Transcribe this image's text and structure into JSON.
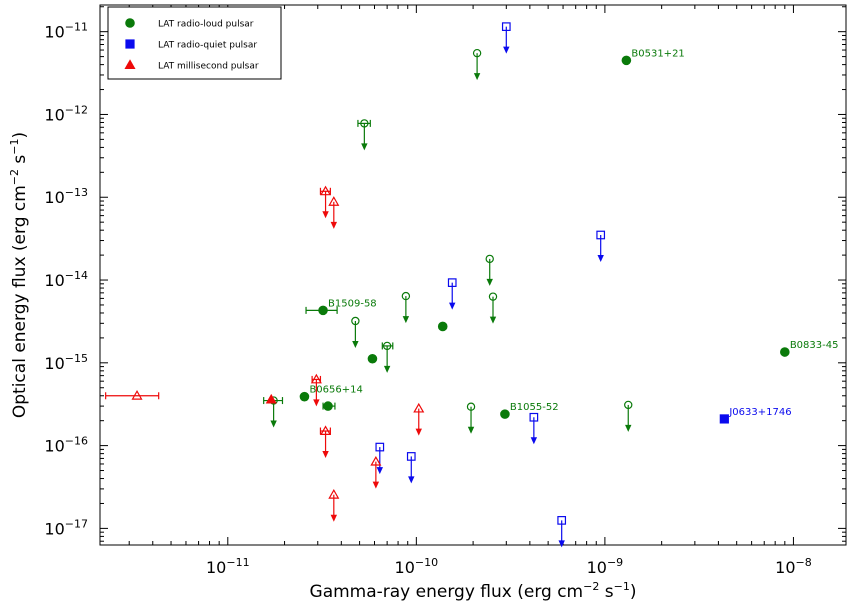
{
  "chart_data": {
    "type": "scatter",
    "x_scale": "log",
    "y_scale": "log",
    "xlim": [
      2.1e-12,
      1.9e-08
    ],
    "ylim": [
      6.3e-18,
      2.1e-11
    ],
    "xlabel": "Gamma-ray energy flux (erg cm",
    "xlabel_units": [
      "−2",
      " s",
      "−1",
      ")"
    ],
    "ylabel": "Optical energy flux (erg cm",
    "ylabel_units": [
      "−2",
      " s",
      "−1",
      ")"
    ],
    "x_ticks": [
      {
        "value": 1e-11,
        "mantissa": "10",
        "exp": "−11"
      },
      {
        "value": 1e-10,
        "mantissa": "10",
        "exp": "−10"
      },
      {
        "value": 1e-09,
        "mantissa": "10",
        "exp": "−9"
      },
      {
        "value": 1e-08,
        "mantissa": "10",
        "exp": "−8"
      }
    ],
    "y_ticks": [
      {
        "value": 1e-17,
        "mantissa": "10",
        "exp": "−17"
      },
      {
        "value": 1e-16,
        "mantissa": "10",
        "exp": "−16"
      },
      {
        "value": 1e-15,
        "mantissa": "10",
        "exp": "−15"
      },
      {
        "value": 1e-14,
        "mantissa": "10",
        "exp": "−14"
      },
      {
        "value": 1e-13,
        "mantissa": "10",
        "exp": "−13"
      },
      {
        "value": 1e-12,
        "mantissa": "10",
        "exp": "−12"
      },
      {
        "value": 1e-11,
        "mantissa": "10",
        "exp": "−11"
      }
    ],
    "grid": false,
    "legend_position": "top-left",
    "series": [
      {
        "name": "LAT radio-loud pulsar",
        "marker": "circle",
        "color": "#0a7a0a",
        "points": [
          {
            "x": 1.3e-09,
            "y": 4.5e-12,
            "label": "B0531+21"
          },
          {
            "x": 9e-09,
            "y": 1.35e-15,
            "label": "B0833-45"
          },
          {
            "x": 3.2e-11,
            "y": 4.3e-15,
            "label": "B1509-58",
            "xerr_low": 2.6e-11,
            "xerr_high": 3.8e-11
          },
          {
            "x": 2.95e-10,
            "y": 2.4e-16,
            "label": "B1055-52"
          },
          {
            "x": 2.55e-11,
            "y": 3.9e-16,
            "label": "B0656+14"
          },
          {
            "x": 1.38e-10,
            "y": 2.75e-15
          },
          {
            "x": 5.85e-11,
            "y": 1.12e-15
          },
          {
            "x": 3.4e-11,
            "y": 3e-16,
            "xerr_low": 3.2e-11,
            "xerr_high": 3.7e-11
          },
          {
            "x": 2.1e-10,
            "y": 5.5e-12,
            "upper_limit": true
          },
          {
            "x": 5.3e-11,
            "y": 7.8e-13,
            "upper_limit": true,
            "xerr_low": 4.9e-11,
            "xerr_high": 5.7e-11
          },
          {
            "x": 2.45e-10,
            "y": 1.8e-14,
            "upper_limit": true
          },
          {
            "x": 8.8e-11,
            "y": 6.4e-15,
            "upper_limit": true
          },
          {
            "x": 2.55e-10,
            "y": 6.3e-15,
            "upper_limit": true
          },
          {
            "x": 4.75e-11,
            "y": 3.2e-15,
            "upper_limit": true
          },
          {
            "x": 7e-11,
            "y": 1.6e-15,
            "upper_limit": true,
            "xerr_low": 6.6e-11,
            "xerr_high": 7.5e-11
          },
          {
            "x": 1.95e-10,
            "y": 2.95e-16,
            "upper_limit": true
          },
          {
            "x": 1.33e-09,
            "y": 3.1e-16,
            "upper_limit": true
          },
          {
            "x": 1.75e-11,
            "y": 3.5e-16,
            "upper_limit": true,
            "xerr_low": 1.55e-11,
            "xerr_high": 1.95e-11
          }
        ]
      },
      {
        "name": "LAT radio-quiet pulsar",
        "marker": "square",
        "color": "#0a0aee",
        "points": [
          {
            "x": 4.3e-09,
            "y": 2.1e-16,
            "label": "J0633+1746"
          },
          {
            "x": 3e-10,
            "y": 1.15e-11,
            "upper_limit": true
          },
          {
            "x": 9.5e-10,
            "y": 3.5e-14,
            "upper_limit": true
          },
          {
            "x": 1.55e-10,
            "y": 9.3e-15,
            "upper_limit": true
          },
          {
            "x": 4.2e-10,
            "y": 2.2e-16,
            "upper_limit": true
          },
          {
            "x": 6.4e-11,
            "y": 9.6e-17,
            "upper_limit": true
          },
          {
            "x": 9.4e-11,
            "y": 7.4e-17,
            "upper_limit": true
          },
          {
            "x": 5.9e-10,
            "y": 1.25e-17,
            "upper_limit": true
          }
        ]
      },
      {
        "name": "LAT millisecond pulsar",
        "marker": "triangle",
        "color": "#ee0a0a",
        "points": [
          {
            "x": 3.3e-12,
            "y": 4e-16,
            "xerr_low": 2.25e-12,
            "xerr_high": 4.3e-12,
            "open": true
          },
          {
            "x": 1.7e-11,
            "y": 3.6e-16
          },
          {
            "x": 3.3e-11,
            "y": 1.18e-13,
            "upper_limit": true,
            "xerr_low": 3.1e-11,
            "xerr_high": 3.5e-11
          },
          {
            "x": 3.65e-11,
            "y": 8.8e-14,
            "upper_limit": true
          },
          {
            "x": 2.95e-11,
            "y": 6.3e-16,
            "upper_limit": true,
            "xerr_low": 2.8e-11,
            "xerr_high": 3.1e-11
          },
          {
            "x": 3.3e-11,
            "y": 1.5e-16,
            "upper_limit": true,
            "xerr_low": 3.1e-11,
            "xerr_high": 3.5e-11
          },
          {
            "x": 6.1e-11,
            "y": 6.4e-17,
            "upper_limit": true
          },
          {
            "x": 1.03e-10,
            "y": 2.8e-16,
            "upper_limit": true
          },
          {
            "x": 3.65e-11,
            "y": 2.55e-17,
            "upper_limit": true
          }
        ]
      }
    ]
  }
}
